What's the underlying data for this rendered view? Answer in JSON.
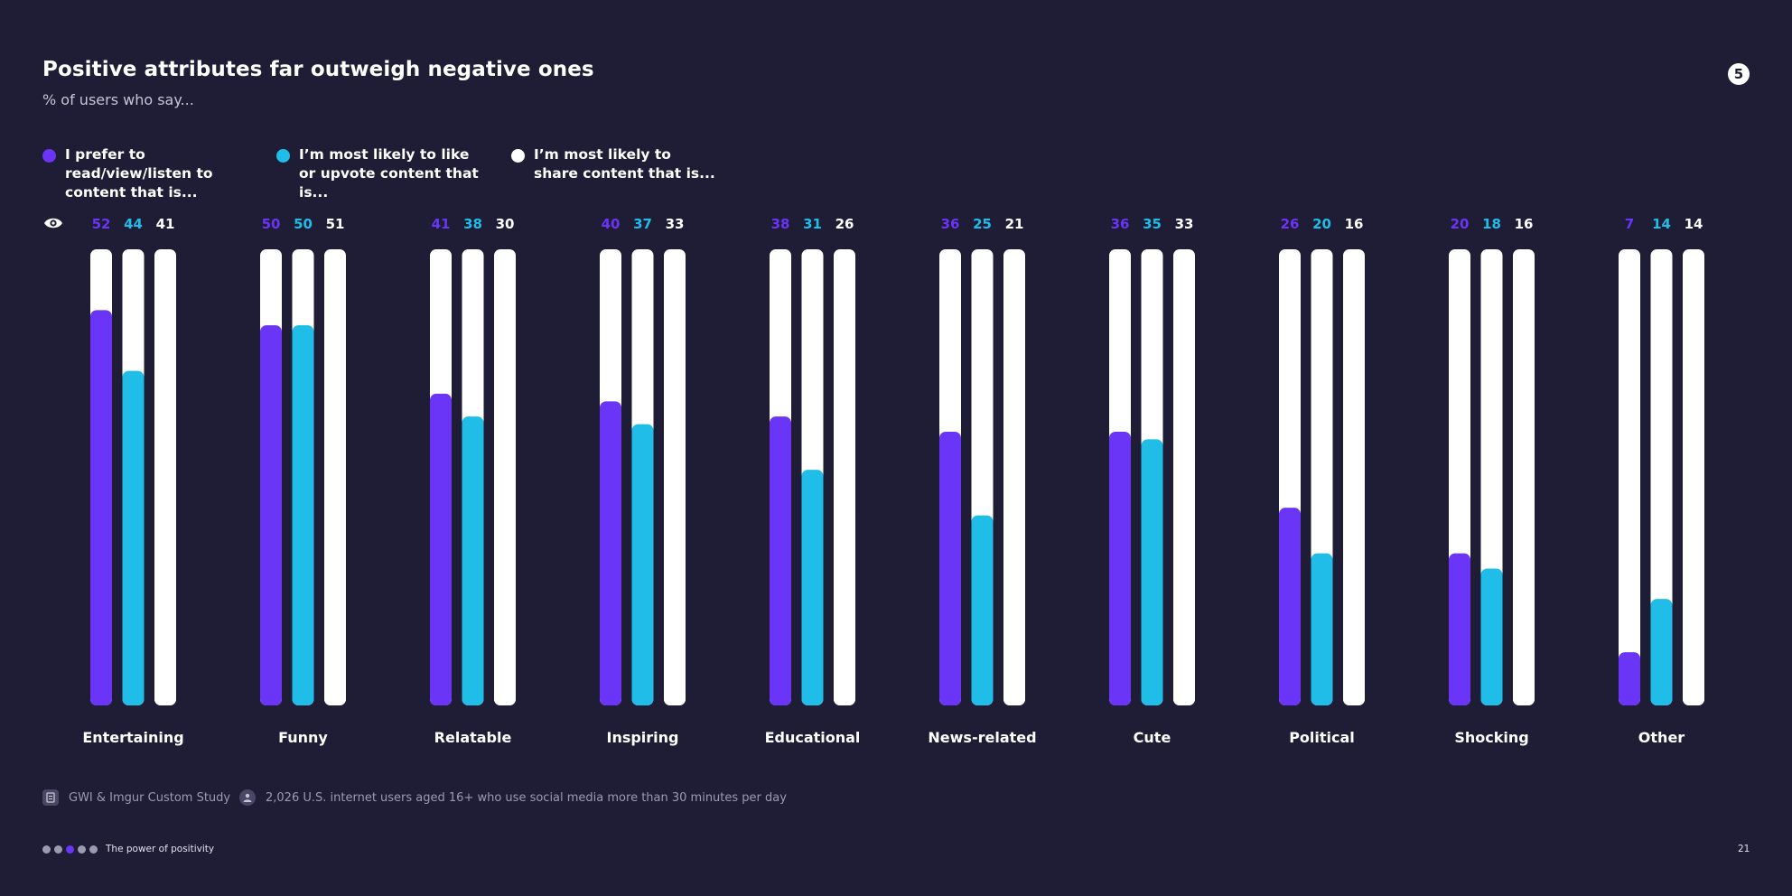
{
  "header": {
    "title": "Positive attributes far outweigh negative ones",
    "subtitle": "% of users who say...",
    "page_badge": "5"
  },
  "legend": [
    {
      "label": "I prefer to read/view/listen to content that is...",
      "color": "#6a35f6"
    },
    {
      "label": "I’m most likely to like or upvote content that is...",
      "color": "#1fbde8"
    },
    {
      "label": "I’m most likely to share content that is...",
      "color": "#ffffff"
    }
  ],
  "chart_data": {
    "type": "bar",
    "title": "Positive attributes far outweigh negative ones",
    "subtitle": "% of users who say...",
    "categories": [
      "Entertaining",
      "Funny",
      "Relatable",
      "Inspiring",
      "Educational",
      "News-related",
      "Cute",
      "Political",
      "Shocking",
      "Other"
    ],
    "series": [
      {
        "name": "I prefer to read/view/listen to content that is...",
        "color": "#6a35f6",
        "values": [
          52,
          50,
          41,
          40,
          38,
          36,
          36,
          26,
          20,
          7
        ]
      },
      {
        "name": "I’m most likely to like or upvote content that is...",
        "color": "#1fbde8",
        "values": [
          44,
          50,
          38,
          37,
          31,
          25,
          35,
          20,
          18,
          14
        ]
      },
      {
        "name": "I’m most likely to share content that is...",
        "color": "#ffffff",
        "values": [
          41,
          51,
          30,
          33,
          26,
          21,
          33,
          16,
          16,
          14
        ]
      }
    ],
    "ylim": [
      0,
      60
    ],
    "grid": false,
    "legend_position": "top-left",
    "data_labels": "above bars"
  },
  "footer": {
    "source": "GWI & Imgur Custom Study",
    "base": "2,026 U.S. internet users aged 16+ who use social media more than 30 minutes per day",
    "section": "The power of positivity",
    "page_number": "21",
    "page_dots": {
      "total": 5,
      "active": 3
    }
  }
}
